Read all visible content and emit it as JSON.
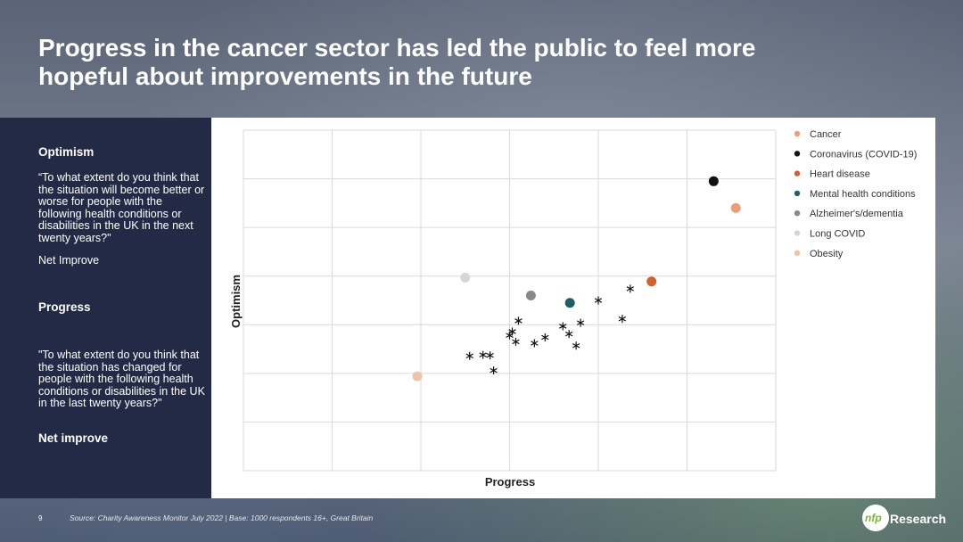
{
  "slide": {
    "title": "Progress in the cancer sector has led the public to feel more hopeful about improvements in the future",
    "page_number": "9",
    "source": "Source: Charity Awareness Monitor July 2022 | Base: 1000 respondents 16+, Great Britain",
    "logo": "nfp Research"
  },
  "left_panel": {
    "optimism_heading": "Optimism",
    "optimism_question": "“To what extent do you think that the situation will become better or worse for people with the following health conditions or disabilities in the UK in the next twenty years?\"",
    "optimism_measure": "Net Improve",
    "progress_heading": "Progress",
    "progress_question": "\"To what extent do you think that the situation has changed for people with the following health conditions or disabilities in the UK in the last twenty years?\"",
    "progress_measure": "Net improve"
  },
  "chart_data": {
    "type": "scatter",
    "xlabel": "Progress",
    "ylabel": "Optimism",
    "xlim": [
      0,
      6
    ],
    "ylim": [
      0,
      7
    ],
    "grid": true,
    "legend_position": "right",
    "series": [
      {
        "name": "Cancer",
        "color": "#e8a07a",
        "x": 5.55,
        "y": 5.4
      },
      {
        "name": "Coronavirus (COVID-19)",
        "color": "#111111",
        "x": 5.3,
        "y": 5.95
      },
      {
        "name": "Heart disease",
        "color": "#d0622f",
        "x": 4.6,
        "y": 3.89
      },
      {
        "name": "Mental health conditions",
        "color": "#1f5f63",
        "x": 3.68,
        "y": 3.45
      },
      {
        "name": "Alzheimer's/dementia",
        "color": "#888888",
        "x": 3.24,
        "y": 3.6
      },
      {
        "name": "Long COVID",
        "color": "#d6d6d6",
        "x": 2.5,
        "y": 3.97
      },
      {
        "name": "Obesity",
        "color": "#efc3ab",
        "x": 1.96,
        "y": 1.94
      }
    ],
    "other_conditions": {
      "marker": "asterisk",
      "x": [
        2.55,
        2.7,
        2.78,
        2.82,
        3.0,
        3.03,
        3.07,
        3.1,
        3.28,
        3.4,
        3.6,
        3.67,
        3.75,
        3.8,
        4.0,
        4.27,
        4.36
      ],
      "y": [
        2.36,
        2.38,
        2.37,
        2.06,
        2.78,
        2.86,
        2.65,
        3.08,
        2.62,
        2.74,
        2.97,
        2.81,
        2.57,
        3.04,
        3.5,
        3.12,
        3.74
      ]
    }
  }
}
